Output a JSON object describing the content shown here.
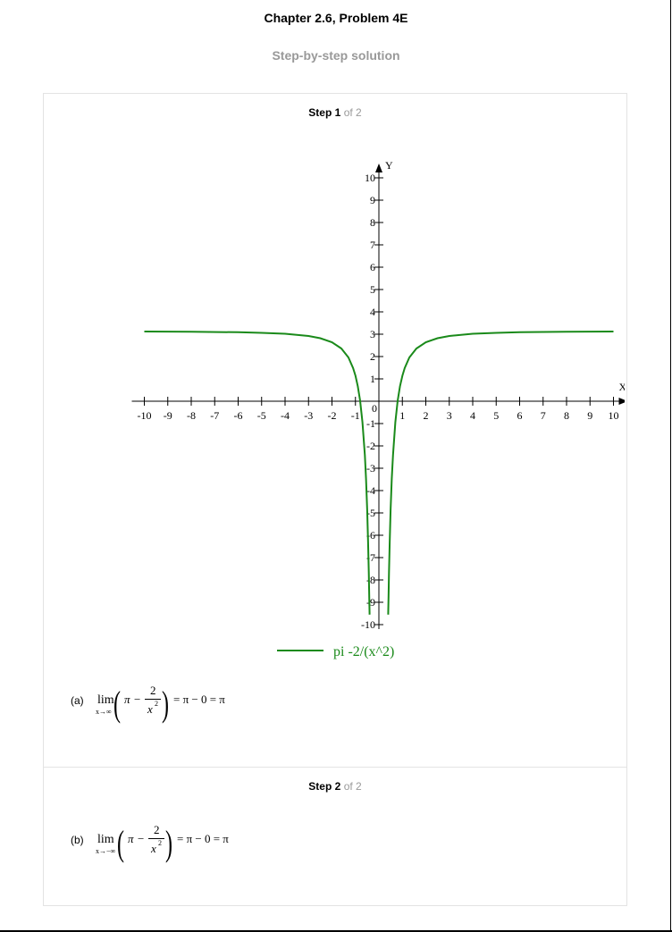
{
  "header": {
    "title": "Chapter 2.6, Problem 4E",
    "subtitle": "Step-by-step solution"
  },
  "steps": [
    {
      "word": "Step",
      "num": "1",
      "of": "of 2"
    },
    {
      "word": "Step",
      "num": "2",
      "of": "of 2"
    }
  ],
  "chart_data": {
    "type": "line",
    "function": "pi - 2/x^2",
    "legend": "pi -2/(x^2)",
    "xlabel": "X",
    "ylabel": "Y",
    "origin_label": "0",
    "xlim": [
      -10,
      10
    ],
    "ylim": [
      -10,
      10
    ],
    "x_ticks": [
      "-10",
      "-9",
      "-8",
      "-7",
      "-6",
      "-5",
      "-4",
      "-3",
      "-2",
      "-1",
      "1",
      "2",
      "3",
      "4",
      "5",
      "6",
      "7",
      "8",
      "9",
      "10"
    ],
    "y_ticks": [
      "-10",
      "-9",
      "-8",
      "-7",
      "-6",
      "-5",
      "-4",
      "-3",
      "-2",
      "-1",
      "1",
      "2",
      "3",
      "4",
      "5",
      "6",
      "7",
      "8",
      "9",
      "10"
    ],
    "series": [
      {
        "name": "pi -2/(x^2)",
        "color": "#1a8a1a",
        "x": [
          -10,
          -8,
          -6,
          -5,
          -4,
          -3,
          -2.5,
          -2,
          -1.6,
          -1.3,
          -1.1,
          -1,
          -0.9,
          -0.8,
          -0.7,
          -0.6,
          -0.55,
          -0.5,
          -0.46,
          -0.43,
          -0.41,
          -0.397,
          0.397,
          0.41,
          0.43,
          0.46,
          0.5,
          0.55,
          0.6,
          0.7,
          0.8,
          0.9,
          1,
          1.1,
          1.3,
          1.6,
          2,
          2.5,
          3,
          4,
          5,
          6,
          8,
          10
        ],
        "y": [
          3.12,
          3.11,
          3.09,
          3.06,
          3.02,
          2.92,
          2.82,
          2.64,
          2.36,
          1.96,
          1.49,
          1.14,
          0.67,
          0.02,
          -0.94,
          -2.41,
          -3.47,
          -4.86,
          -6.31,
          -7.67,
          -8.76,
          -9.55,
          -9.55,
          -8.76,
          -7.67,
          -6.31,
          -4.86,
          -3.47,
          -2.41,
          -0.94,
          0.02,
          0.67,
          1.14,
          1.49,
          1.96,
          2.36,
          2.64,
          2.82,
          2.92,
          3.02,
          3.06,
          3.09,
          3.11,
          3.12
        ]
      }
    ]
  },
  "parts": [
    {
      "label": "(a)",
      "lim": "lim",
      "sub": "x→∞",
      "pi": "π",
      "minus": "−",
      "num": "2",
      "den": "x",
      "exp": "2",
      "rhs": "= π − 0 = π"
    },
    {
      "label": "(b)",
      "lim": "lim",
      "sub": "x→−∞",
      "pi": "π",
      "minus": "−",
      "num": "2",
      "den": "x",
      "exp": "2",
      "rhs": "= π − 0 = π"
    }
  ]
}
